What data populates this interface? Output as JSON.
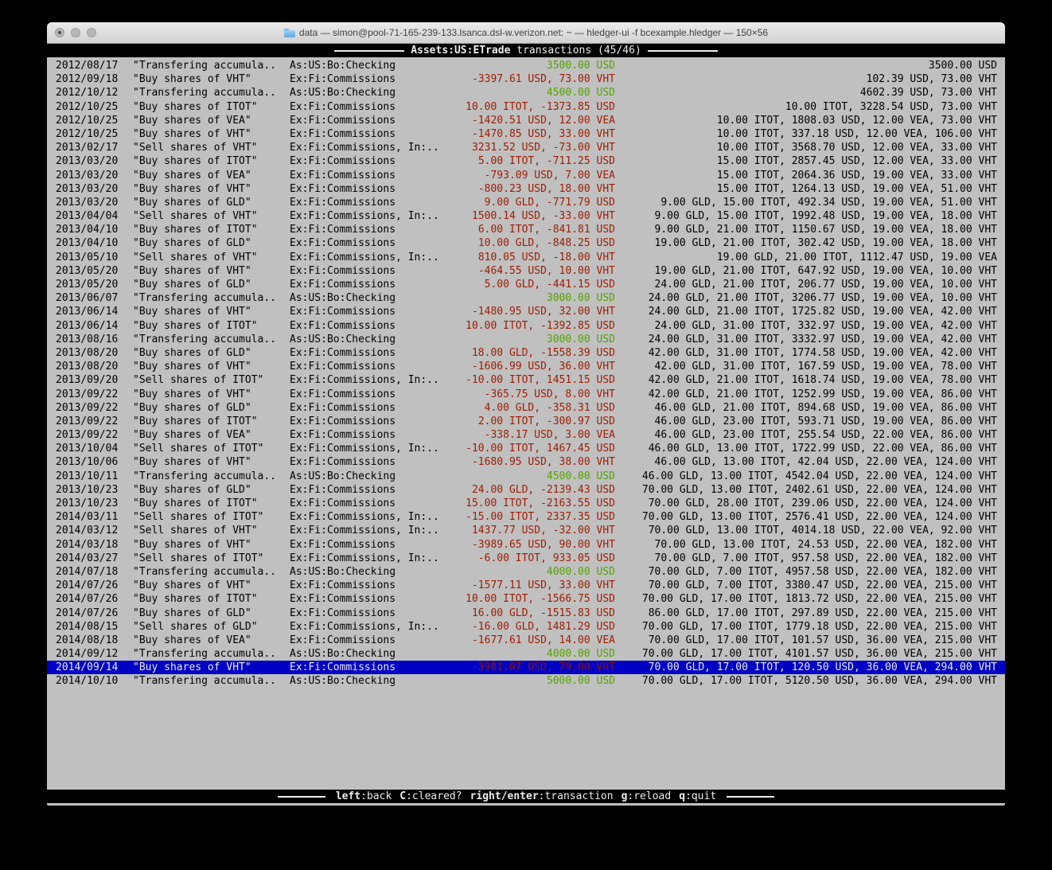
{
  "window": {
    "title": "data — simon@pool-71-165-239-133.lsanca.dsl-w.verizon.net: ~ — hledger-ui -f bcexample.hledger — 150×56"
  },
  "header": {
    "account": "Assets:US:ETrade",
    "mode": " transactions (45/46)"
  },
  "footer": {
    "shortcuts": [
      {
        "key": "left",
        "desc": ":back"
      },
      {
        "key": "C",
        "desc": ":cleared?"
      },
      {
        "key": "right/enter",
        "desc": ":transaction"
      },
      {
        "key": "g",
        "desc": ":reload"
      },
      {
        "key": "q",
        "desc": ":quit"
      }
    ]
  },
  "colors": {
    "positive_amount": "#55a300",
    "negative_amount": "#9e1b00",
    "selection_bg": "#0000c4",
    "terminal_bg": "#c0c0c0"
  },
  "register": {
    "selected_index": 44,
    "rows": [
      {
        "date": "2012/08/17",
        "desc": "\"Transfering accumula..",
        "acct": "As:US:Bo:Checking",
        "chg": "3500.00 USD",
        "sign": "pos",
        "bal": "3500.00 USD"
      },
      {
        "date": "2012/09/18",
        "desc": "\"Buy shares of VHT\"",
        "acct": "Ex:Fi:Commissions",
        "chg": "-3397.61 USD, 73.00 VHT",
        "sign": "neg",
        "bal": "102.39 USD, 73.00 VHT"
      },
      {
        "date": "2012/10/12",
        "desc": "\"Transfering accumula..",
        "acct": "As:US:Bo:Checking",
        "chg": "4500.00 USD",
        "sign": "pos",
        "bal": "4602.39 USD, 73.00 VHT"
      },
      {
        "date": "2012/10/25",
        "desc": "\"Buy shares of ITOT\"",
        "acct": "Ex:Fi:Commissions",
        "chg": "10.00 ITOT, -1373.85 USD",
        "sign": "neg",
        "bal": "10.00 ITOT, 3228.54 USD, 73.00 VHT"
      },
      {
        "date": "2012/10/25",
        "desc": "\"Buy shares of VEA\"",
        "acct": "Ex:Fi:Commissions",
        "chg": "-1420.51 USD, 12.00 VEA",
        "sign": "neg",
        "bal": "10.00 ITOT, 1808.03 USD, 12.00 VEA, 73.00 VHT"
      },
      {
        "date": "2012/10/25",
        "desc": "\"Buy shares of VHT\"",
        "acct": "Ex:Fi:Commissions",
        "chg": "-1470.85 USD, 33.00 VHT",
        "sign": "neg",
        "bal": "10.00 ITOT, 337.18 USD, 12.00 VEA, 106.00 VHT"
      },
      {
        "date": "2013/02/17",
        "desc": "\"Sell shares of VHT\"",
        "acct": "Ex:Fi:Commissions, In:..",
        "chg": "3231.52 USD, -73.00 VHT",
        "sign": "neg",
        "bal": "10.00 ITOT, 3568.70 USD, 12.00 VEA, 33.00 VHT"
      },
      {
        "date": "2013/03/20",
        "desc": "\"Buy shares of ITOT\"",
        "acct": "Ex:Fi:Commissions",
        "chg": "5.00 ITOT, -711.25 USD",
        "sign": "neg",
        "bal": "15.00 ITOT, 2857.45 USD, 12.00 VEA, 33.00 VHT"
      },
      {
        "date": "2013/03/20",
        "desc": "\"Buy shares of VEA\"",
        "acct": "Ex:Fi:Commissions",
        "chg": "-793.09 USD, 7.00 VEA",
        "sign": "neg",
        "bal": "15.00 ITOT, 2064.36 USD, 19.00 VEA, 33.00 VHT"
      },
      {
        "date": "2013/03/20",
        "desc": "\"Buy shares of VHT\"",
        "acct": "Ex:Fi:Commissions",
        "chg": "-800.23 USD, 18.00 VHT",
        "sign": "neg",
        "bal": "15.00 ITOT, 1264.13 USD, 19.00 VEA, 51.00 VHT"
      },
      {
        "date": "2013/03/20",
        "desc": "\"Buy shares of GLD\"",
        "acct": "Ex:Fi:Commissions",
        "chg": "9.00 GLD, -771.79 USD",
        "sign": "neg",
        "bal": "9.00 GLD, 15.00 ITOT, 492.34 USD, 19.00 VEA, 51.00 VHT"
      },
      {
        "date": "2013/04/04",
        "desc": "\"Sell shares of VHT\"",
        "acct": "Ex:Fi:Commissions, In:..",
        "chg": "1500.14 USD, -33.00 VHT",
        "sign": "neg",
        "bal": "9.00 GLD, 15.00 ITOT, 1992.48 USD, 19.00 VEA, 18.00 VHT"
      },
      {
        "date": "2013/04/10",
        "desc": "\"Buy shares of ITOT\"",
        "acct": "Ex:Fi:Commissions",
        "chg": "6.00 ITOT, -841.81 USD",
        "sign": "neg",
        "bal": "9.00 GLD, 21.00 ITOT, 1150.67 USD, 19.00 VEA, 18.00 VHT"
      },
      {
        "date": "2013/04/10",
        "desc": "\"Buy shares of GLD\"",
        "acct": "Ex:Fi:Commissions",
        "chg": "10.00 GLD, -848.25 USD",
        "sign": "neg",
        "bal": "19.00 GLD, 21.00 ITOT, 302.42 USD, 19.00 VEA, 18.00 VHT"
      },
      {
        "date": "2013/05/10",
        "desc": "\"Sell shares of VHT\"",
        "acct": "Ex:Fi:Commissions, In:..",
        "chg": "810.05 USD, -18.00 VHT",
        "sign": "neg",
        "bal": "19.00 GLD, 21.00 ITOT, 1112.47 USD, 19.00 VEA"
      },
      {
        "date": "2013/05/20",
        "desc": "\"Buy shares of VHT\"",
        "acct": "Ex:Fi:Commissions",
        "chg": "-464.55 USD, 10.00 VHT",
        "sign": "neg",
        "bal": "19.00 GLD, 21.00 ITOT, 647.92 USD, 19.00 VEA, 10.00 VHT"
      },
      {
        "date": "2013/05/20",
        "desc": "\"Buy shares of GLD\"",
        "acct": "Ex:Fi:Commissions",
        "chg": "5.00 GLD, -441.15 USD",
        "sign": "neg",
        "bal": "24.00 GLD, 21.00 ITOT, 206.77 USD, 19.00 VEA, 10.00 VHT"
      },
      {
        "date": "2013/06/07",
        "desc": "\"Transfering accumula..",
        "acct": "As:US:Bo:Checking",
        "chg": "3000.00 USD",
        "sign": "pos",
        "bal": "24.00 GLD, 21.00 ITOT, 3206.77 USD, 19.00 VEA, 10.00 VHT"
      },
      {
        "date": "2013/06/14",
        "desc": "\"Buy shares of VHT\"",
        "acct": "Ex:Fi:Commissions",
        "chg": "-1480.95 USD, 32.00 VHT",
        "sign": "neg",
        "bal": "24.00 GLD, 21.00 ITOT, 1725.82 USD, 19.00 VEA, 42.00 VHT"
      },
      {
        "date": "2013/06/14",
        "desc": "\"Buy shares of ITOT\"",
        "acct": "Ex:Fi:Commissions",
        "chg": "10.00 ITOT, -1392.85 USD",
        "sign": "neg",
        "bal": "24.00 GLD, 31.00 ITOT, 332.97 USD, 19.00 VEA, 42.00 VHT"
      },
      {
        "date": "2013/08/16",
        "desc": "\"Transfering accumula..",
        "acct": "As:US:Bo:Checking",
        "chg": "3000.00 USD",
        "sign": "pos",
        "bal": "24.00 GLD, 31.00 ITOT, 3332.97 USD, 19.00 VEA, 42.00 VHT"
      },
      {
        "date": "2013/08/20",
        "desc": "\"Buy shares of GLD\"",
        "acct": "Ex:Fi:Commissions",
        "chg": "18.00 GLD, -1558.39 USD",
        "sign": "neg",
        "bal": "42.00 GLD, 31.00 ITOT, 1774.58 USD, 19.00 VEA, 42.00 VHT"
      },
      {
        "date": "2013/08/20",
        "desc": "\"Buy shares of VHT\"",
        "acct": "Ex:Fi:Commissions",
        "chg": "-1606.99 USD, 36.00 VHT",
        "sign": "neg",
        "bal": "42.00 GLD, 31.00 ITOT, 167.59 USD, 19.00 VEA, 78.00 VHT"
      },
      {
        "date": "2013/09/20",
        "desc": "\"Sell shares of ITOT\"",
        "acct": "Ex:Fi:Commissions, In:..",
        "chg": "-10.00 ITOT, 1451.15 USD",
        "sign": "neg",
        "bal": "42.00 GLD, 21.00 ITOT, 1618.74 USD, 19.00 VEA, 78.00 VHT"
      },
      {
        "date": "2013/09/22",
        "desc": "\"Buy shares of VHT\"",
        "acct": "Ex:Fi:Commissions",
        "chg": "-365.75 USD, 8.00 VHT",
        "sign": "neg",
        "bal": "42.00 GLD, 21.00 ITOT, 1252.99 USD, 19.00 VEA, 86.00 VHT"
      },
      {
        "date": "2013/09/22",
        "desc": "\"Buy shares of GLD\"",
        "acct": "Ex:Fi:Commissions",
        "chg": "4.00 GLD, -358.31 USD",
        "sign": "neg",
        "bal": "46.00 GLD, 21.00 ITOT, 894.68 USD, 19.00 VEA, 86.00 VHT"
      },
      {
        "date": "2013/09/22",
        "desc": "\"Buy shares of ITOT\"",
        "acct": "Ex:Fi:Commissions",
        "chg": "2.00 ITOT, -300.97 USD",
        "sign": "neg",
        "bal": "46.00 GLD, 23.00 ITOT, 593.71 USD, 19.00 VEA, 86.00 VHT"
      },
      {
        "date": "2013/09/22",
        "desc": "\"Buy shares of VEA\"",
        "acct": "Ex:Fi:Commissions",
        "chg": "-338.17 USD, 3.00 VEA",
        "sign": "neg",
        "bal": "46.00 GLD, 23.00 ITOT, 255.54 USD, 22.00 VEA, 86.00 VHT"
      },
      {
        "date": "2013/10/04",
        "desc": "\"Sell shares of ITOT\"",
        "acct": "Ex:Fi:Commissions, In:..",
        "chg": "-10.00 ITOT, 1467.45 USD",
        "sign": "neg",
        "bal": "46.00 GLD, 13.00 ITOT, 1722.99 USD, 22.00 VEA, 86.00 VHT"
      },
      {
        "date": "2013/10/06",
        "desc": "\"Buy shares of VHT\"",
        "acct": "Ex:Fi:Commissions",
        "chg": "-1680.95 USD, 38.00 VHT",
        "sign": "neg",
        "bal": "46.00 GLD, 13.00 ITOT, 42.04 USD, 22.00 VEA, 124.00 VHT"
      },
      {
        "date": "2013/10/11",
        "desc": "\"Transfering accumula..",
        "acct": "As:US:Bo:Checking",
        "chg": "4500.00 USD",
        "sign": "pos",
        "bal": "46.00 GLD, 13.00 ITOT, 4542.04 USD, 22.00 VEA, 124.00 VHT"
      },
      {
        "date": "2013/10/23",
        "desc": "\"Buy shares of GLD\"",
        "acct": "Ex:Fi:Commissions",
        "chg": "24.00 GLD, -2139.43 USD",
        "sign": "neg",
        "bal": "70.00 GLD, 13.00 ITOT, 2402.61 USD, 22.00 VEA, 124.00 VHT"
      },
      {
        "date": "2013/10/23",
        "desc": "\"Buy shares of ITOT\"",
        "acct": "Ex:Fi:Commissions",
        "chg": "15.00 ITOT, -2163.55 USD",
        "sign": "neg",
        "bal": "70.00 GLD, 28.00 ITOT, 239.06 USD, 22.00 VEA, 124.00 VHT"
      },
      {
        "date": "2014/03/11",
        "desc": "\"Sell shares of ITOT\"",
        "acct": "Ex:Fi:Commissions, In:..",
        "chg": "-15.00 ITOT, 2337.35 USD",
        "sign": "neg",
        "bal": "70.00 GLD, 13.00 ITOT, 2576.41 USD, 22.00 VEA, 124.00 VHT"
      },
      {
        "date": "2014/03/12",
        "desc": "\"Sell shares of VHT\"",
        "acct": "Ex:Fi:Commissions, In:..",
        "chg": "1437.77 USD, -32.00 VHT",
        "sign": "neg",
        "bal": "70.00 GLD, 13.00 ITOT, 4014.18 USD, 22.00 VEA, 92.00 VHT"
      },
      {
        "date": "2014/03/18",
        "desc": "\"Buy shares of VHT\"",
        "acct": "Ex:Fi:Commissions",
        "chg": "-3989.65 USD, 90.00 VHT",
        "sign": "neg",
        "bal": "70.00 GLD, 13.00 ITOT, 24.53 USD, 22.00 VEA, 182.00 VHT"
      },
      {
        "date": "2014/03/27",
        "desc": "\"Sell shares of ITOT\"",
        "acct": "Ex:Fi:Commissions, In:..",
        "chg": "-6.00 ITOT, 933.05 USD",
        "sign": "neg",
        "bal": "70.00 GLD, 7.00 ITOT, 957.58 USD, 22.00 VEA, 182.00 VHT"
      },
      {
        "date": "2014/07/18",
        "desc": "\"Transfering accumula..",
        "acct": "As:US:Bo:Checking",
        "chg": "4000.00 USD",
        "sign": "pos",
        "bal": "70.00 GLD, 7.00 ITOT, 4957.58 USD, 22.00 VEA, 182.00 VHT"
      },
      {
        "date": "2014/07/26",
        "desc": "\"Buy shares of VHT\"",
        "acct": "Ex:Fi:Commissions",
        "chg": "-1577.11 USD, 33.00 VHT",
        "sign": "neg",
        "bal": "70.00 GLD, 7.00 ITOT, 3380.47 USD, 22.00 VEA, 215.00 VHT"
      },
      {
        "date": "2014/07/26",
        "desc": "\"Buy shares of ITOT\"",
        "acct": "Ex:Fi:Commissions",
        "chg": "10.00 ITOT, -1566.75 USD",
        "sign": "neg",
        "bal": "70.00 GLD, 17.00 ITOT, 1813.72 USD, 22.00 VEA, 215.00 VHT"
      },
      {
        "date": "2014/07/26",
        "desc": "\"Buy shares of GLD\"",
        "acct": "Ex:Fi:Commissions",
        "chg": "16.00 GLD, -1515.83 USD",
        "sign": "neg",
        "bal": "86.00 GLD, 17.00 ITOT, 297.89 USD, 22.00 VEA, 215.00 VHT"
      },
      {
        "date": "2014/08/15",
        "desc": "\"Sell shares of GLD\"",
        "acct": "Ex:Fi:Commissions, In:..",
        "chg": "-16.00 GLD, 1481.29 USD",
        "sign": "neg",
        "bal": "70.00 GLD, 17.00 ITOT, 1779.18 USD, 22.00 VEA, 215.00 VHT"
      },
      {
        "date": "2014/08/18",
        "desc": "\"Buy shares of VEA\"",
        "acct": "Ex:Fi:Commissions",
        "chg": "-1677.61 USD, 14.00 VEA",
        "sign": "neg",
        "bal": "70.00 GLD, 17.00 ITOT, 101.57 USD, 36.00 VEA, 215.00 VHT"
      },
      {
        "date": "2014/09/12",
        "desc": "\"Transfering accumula..",
        "acct": "As:US:Bo:Checking",
        "chg": "4000.00 USD",
        "sign": "pos",
        "bal": "70.00 GLD, 17.00 ITOT, 4101.57 USD, 36.00 VEA, 215.00 VHT"
      },
      {
        "date": "2014/09/14",
        "desc": "\"Buy shares of VHT\"",
        "acct": "Ex:Fi:Commissions",
        "chg": "-3981.07 USD, 79.00 VHT",
        "sign": "neg",
        "bal": "70.00 GLD, 17.00 ITOT, 120.50 USD, 36.00 VEA, 294.00 VHT"
      },
      {
        "date": "2014/10/10",
        "desc": "\"Transfering accumula..",
        "acct": "As:US:Bo:Checking",
        "chg": "5000.00 USD",
        "sign": "pos",
        "bal": "70.00 GLD, 17.00 ITOT, 5120.50 USD, 36.00 VEA, 294.00 VHT"
      }
    ]
  }
}
